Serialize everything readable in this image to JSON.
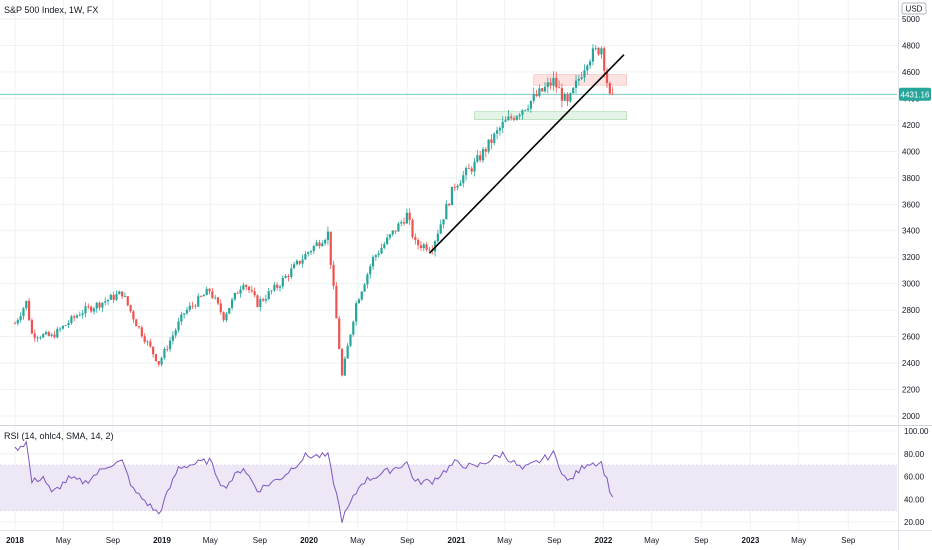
{
  "header": {
    "title": "S&P 500 Index, 1W, FX",
    "currency": "USD",
    "rsi_title": "RSI (14, ohlc4, SMA, 14, 2)"
  },
  "colors": {
    "up": "#26a69a",
    "down": "#ef5350",
    "rsi_line": "#7e57c2",
    "rsi_band": "#ede7f6",
    "price_line": "#26a69a",
    "resistance_zone": "#fde2e2",
    "support_zone": "#e3f3e6",
    "trendline": "#000000"
  },
  "chart_data": [
    {
      "type": "candlestick",
      "title": "S&P 500 Index, 1W, FX",
      "ylabel": "USD",
      "ylim": [
        1900,
        5050
      ],
      "y_ticks": [
        2000,
        2200,
        2400,
        2600,
        2800,
        3000,
        3200,
        3400,
        3600,
        3800,
        4000,
        4200,
        4400,
        4600,
        4800,
        5000
      ],
      "last_price": 4431.16,
      "last_price_label": "4431.16",
      "series": [
        {
          "date": "2018-01-01",
          "close": 2700
        },
        {
          "date": "2018-01-29",
          "close": 2860
        },
        {
          "date": "2018-02-12",
          "close": 2620
        },
        {
          "date": "2018-04-02",
          "close": 2600
        },
        {
          "date": "2018-06-11",
          "close": 2780
        },
        {
          "date": "2018-09-24",
          "close": 2930
        },
        {
          "date": "2018-10-29",
          "close": 2700
        },
        {
          "date": "2018-12-24",
          "close": 2400
        },
        {
          "date": "2019-02-25",
          "close": 2780
        },
        {
          "date": "2019-04-29",
          "close": 2950
        },
        {
          "date": "2019-06-03",
          "close": 2750
        },
        {
          "date": "2019-07-22",
          "close": 3020
        },
        {
          "date": "2019-08-26",
          "close": 2850
        },
        {
          "date": "2019-10-14",
          "close": 2980
        },
        {
          "date": "2019-12-30",
          "close": 3240
        },
        {
          "date": "2020-02-17",
          "close": 3380
        },
        {
          "date": "2020-03-02",
          "close": 2950
        },
        {
          "date": "2020-03-23",
          "close": 2300
        },
        {
          "date": "2020-04-27",
          "close": 2850
        },
        {
          "date": "2020-06-08",
          "close": 3190
        },
        {
          "date": "2020-08-31",
          "close": 3520
        },
        {
          "date": "2020-09-21",
          "close": 3300
        },
        {
          "date": "2020-11-02",
          "close": 3280
        },
        {
          "date": "2020-12-28",
          "close": 3750
        },
        {
          "date": "2021-02-15",
          "close": 3900
        },
        {
          "date": "2021-04-26",
          "close": 4200
        },
        {
          "date": "2021-07-05",
          "close": 4380
        },
        {
          "date": "2021-08-30",
          "close": 4530
        },
        {
          "date": "2021-10-04",
          "close": 4350
        },
        {
          "date": "2021-11-22",
          "close": 4700
        },
        {
          "date": "2021-12-27",
          "close": 4790
        },
        {
          "date": "2022-01-17",
          "close": 4400
        },
        {
          "date": "2022-01-24",
          "close": 4431
        }
      ],
      "annotations": {
        "trendline": [
          {
            "date": "2020-10-26",
            "value": 3230
          },
          {
            "date": "2022-02-21",
            "value": 4730
          }
        ],
        "resistance_zone": {
          "from_date": "2021-07-12",
          "to_date": "2022-02-28",
          "low": 4500,
          "high": 4580
        },
        "support_zone": {
          "from_date": "2021-02-15",
          "to_date": "2022-02-28",
          "low": 4240,
          "high": 4300
        }
      }
    },
    {
      "type": "line",
      "title": "RSI (14, ohlc4, SMA, 14, 2)",
      "ylim": [
        10,
        100
      ],
      "y_ticks": [
        20,
        40,
        60,
        80,
        100
      ],
      "band": [
        30,
        70
      ],
      "series": [
        {
          "date": "2018-01-01",
          "value": 84
        },
        {
          "date": "2018-01-29",
          "value": 90
        },
        {
          "date": "2018-02-12",
          "value": 55
        },
        {
          "date": "2018-03-12",
          "value": 60
        },
        {
          "date": "2018-04-02",
          "value": 45
        },
        {
          "date": "2018-05-14",
          "value": 58
        },
        {
          "date": "2018-06-25",
          "value": 55
        },
        {
          "date": "2018-08-20",
          "value": 70
        },
        {
          "date": "2018-09-24",
          "value": 73
        },
        {
          "date": "2018-10-22",
          "value": 48
        },
        {
          "date": "2018-12-24",
          "value": 27
        },
        {
          "date": "2019-02-11",
          "value": 68
        },
        {
          "date": "2019-04-29",
          "value": 74
        },
        {
          "date": "2019-06-03",
          "value": 50
        },
        {
          "date": "2019-07-22",
          "value": 68
        },
        {
          "date": "2019-08-26",
          "value": 48
        },
        {
          "date": "2019-10-28",
          "value": 60
        },
        {
          "date": "2019-12-23",
          "value": 78
        },
        {
          "date": "2020-02-17",
          "value": 78
        },
        {
          "date": "2020-03-23",
          "value": 22
        },
        {
          "date": "2020-05-11",
          "value": 55
        },
        {
          "date": "2020-08-31",
          "value": 72
        },
        {
          "date": "2020-09-21",
          "value": 55
        },
        {
          "date": "2020-11-02",
          "value": 56
        },
        {
          "date": "2020-12-28",
          "value": 72
        },
        {
          "date": "2021-02-15",
          "value": 68
        },
        {
          "date": "2021-04-26",
          "value": 80
        },
        {
          "date": "2021-06-14",
          "value": 66
        },
        {
          "date": "2021-08-30",
          "value": 80
        },
        {
          "date": "2021-10-04",
          "value": 55
        },
        {
          "date": "2021-11-22",
          "value": 72
        },
        {
          "date": "2021-12-27",
          "value": 72
        },
        {
          "date": "2022-01-24",
          "value": 41
        }
      ]
    }
  ],
  "x_axis": {
    "labels": [
      {
        "text": "2018",
        "date": "2018-01-01",
        "bold": true
      },
      {
        "text": "May",
        "date": "2018-05-01",
        "bold": false
      },
      {
        "text": "Sep",
        "date": "2018-09-01",
        "bold": false
      },
      {
        "text": "2019",
        "date": "2019-01-01",
        "bold": true
      },
      {
        "text": "May",
        "date": "2019-05-01",
        "bold": false
      },
      {
        "text": "Sep",
        "date": "2019-09-01",
        "bold": false
      },
      {
        "text": "2020",
        "date": "2020-01-01",
        "bold": true
      },
      {
        "text": "May",
        "date": "2020-05-01",
        "bold": false
      },
      {
        "text": "Sep",
        "date": "2020-09-01",
        "bold": false
      },
      {
        "text": "2021",
        "date": "2021-01-01",
        "bold": true
      },
      {
        "text": "May",
        "date": "2021-05-01",
        "bold": false
      },
      {
        "text": "Sep",
        "date": "2021-09-01",
        "bold": false
      },
      {
        "text": "2022",
        "date": "2022-01-01",
        "bold": true
      },
      {
        "text": "May",
        "date": "2022-05-01",
        "bold": false
      },
      {
        "text": "Sep",
        "date": "2022-09-01",
        "bold": false
      },
      {
        "text": "2023",
        "date": "2023-01-01",
        "bold": true
      },
      {
        "text": "May",
        "date": "2023-05-01",
        "bold": false
      },
      {
        "text": "Sep",
        "date": "2023-09-01",
        "bold": false
      }
    ]
  }
}
